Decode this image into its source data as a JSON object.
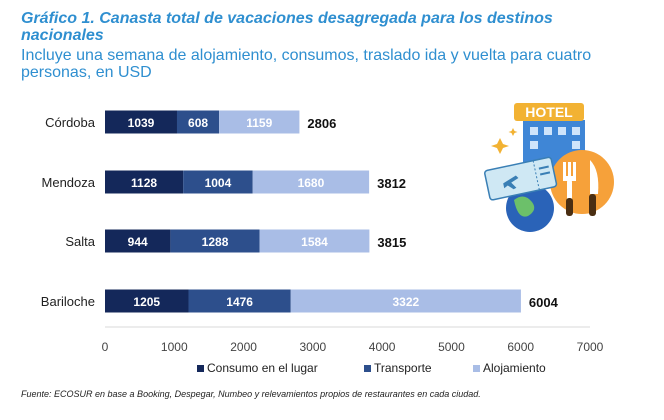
{
  "title": "Gráfico 1. Canasta total de vacaciones desagregada para los destinos nacionales",
  "subtitle": "Incluye una semana de alojamiento, consumos, traslado ida y vuelta para cuatro personas, en USD",
  "source": "Fuente: ECOSUR en base a Booking, Despegar, Numbeo y relevamientos propios de restaurantes en cada ciudad.",
  "illustration": {
    "sign_text": "HOTEL"
  },
  "chart_data": {
    "type": "bar",
    "orientation": "horizontal",
    "stacked": true,
    "categories": [
      "Córdoba",
      "Mendoza",
      "Salta",
      "Bariloche"
    ],
    "series": [
      {
        "name": "Consumo en el lugar",
        "color": "#14285a",
        "values": [
          1039,
          1128,
          944,
          1205
        ]
      },
      {
        "name": "Transporte",
        "color": "#2d4f8c",
        "values": [
          608,
          1004,
          1288,
          1476
        ]
      },
      {
        "name": "Alojamiento",
        "color": "#a9bde6",
        "values": [
          1159,
          1680,
          1584,
          3322
        ]
      }
    ],
    "totals": [
      2806,
      3812,
      3815,
      6004
    ],
    "xlim": [
      0,
      7000
    ],
    "xticks": [
      0,
      1000,
      2000,
      3000,
      4000,
      5000,
      6000,
      7000
    ],
    "legend": "bottom",
    "grid": false
  }
}
